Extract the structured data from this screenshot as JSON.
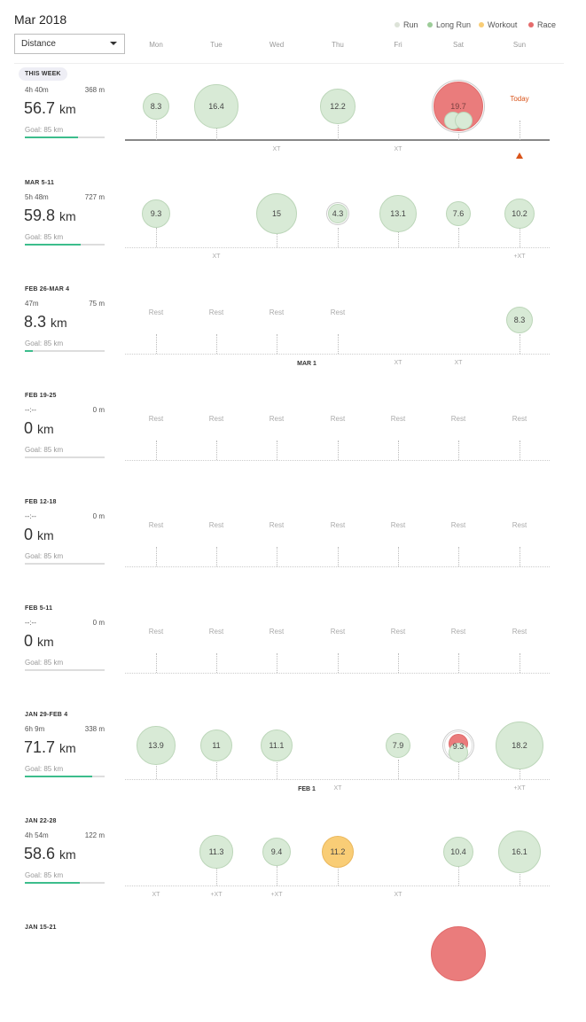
{
  "header": {
    "month_title": "Mar 2018",
    "metric_select": "Distance",
    "legend": [
      {
        "label": "Run",
        "color": "#dde3d8"
      },
      {
        "label": "Long Run",
        "color": "#9ccc98"
      },
      {
        "label": "Workout",
        "color": "#f9cd76"
      },
      {
        "label": "Race",
        "color": "#e56b6b"
      }
    ],
    "days": [
      "Mon",
      "Tue",
      "Wed",
      "Thu",
      "Fri",
      "Sat",
      "Sun"
    ]
  },
  "weeks": [
    {
      "label": "THIS WEEK",
      "time": "4h 40m",
      "elevation": "368 m",
      "total": "56.7",
      "unit": "km",
      "goal": "Goal: 85 km",
      "goal_progress": 0.667,
      "current": true,
      "days": [
        {
          "type": "run",
          "value": "8.3"
        },
        {
          "type": "long",
          "value": "16.4"
        },
        null,
        {
          "type": "run",
          "value": "12.2"
        },
        null,
        {
          "type": "race",
          "value": "19.7",
          "ring": true,
          "extras": [
            "run",
            "run"
          ]
        },
        {
          "type": "today",
          "label": "Today"
        }
      ],
      "xt": [
        null,
        null,
        "XT",
        null,
        "XT",
        null,
        null
      ]
    },
    {
      "label": "MAR 5-11",
      "time": "5h 48m",
      "elevation": "727 m",
      "total": "59.8",
      "unit": "km",
      "goal": "Goal: 85 km",
      "goal_progress": 0.704,
      "days": [
        {
          "type": "run",
          "value": "9.3"
        },
        null,
        {
          "type": "long",
          "value": "15"
        },
        {
          "type": "run",
          "value": "4.3",
          "ring": true
        },
        {
          "type": "run",
          "value": "13.1"
        },
        {
          "type": "run",
          "value": "7.6"
        },
        {
          "type": "run",
          "value": "10.2"
        }
      ],
      "xt": [
        null,
        "XT",
        null,
        null,
        null,
        null,
        "+XT"
      ]
    },
    {
      "label": "FEB 26-MAR 4",
      "time": "47m",
      "elevation": "75 m",
      "total": "8.3",
      "unit": "km",
      "goal": "Goal: 85 km",
      "goal_progress": 0.098,
      "days": [
        {
          "type": "rest",
          "label": "Rest"
        },
        {
          "type": "rest",
          "label": "Rest"
        },
        {
          "type": "rest",
          "label": "Rest"
        },
        {
          "type": "rest",
          "label": "Rest"
        },
        null,
        null,
        {
          "type": "run",
          "value": "8.3"
        }
      ],
      "xt": [
        null,
        null,
        null,
        null,
        "XT",
        "XT",
        null
      ],
      "month_mark": "MAR 1"
    },
    {
      "label": "FEB 19-25",
      "time": "--:--",
      "elevation": "0 m",
      "total": "0",
      "unit": "km",
      "goal": "Goal: 85 km",
      "goal_progress": 0,
      "days": [
        {
          "type": "rest",
          "label": "Rest"
        },
        {
          "type": "rest",
          "label": "Rest"
        },
        {
          "type": "rest",
          "label": "Rest"
        },
        {
          "type": "rest",
          "label": "Rest"
        },
        {
          "type": "rest",
          "label": "Rest"
        },
        {
          "type": "rest",
          "label": "Rest"
        },
        {
          "type": "rest",
          "label": "Rest"
        }
      ],
      "xt": []
    },
    {
      "label": "FEB 12-18",
      "time": "--:--",
      "elevation": "0 m",
      "total": "0",
      "unit": "km",
      "goal": "Goal: 85 km",
      "goal_progress": 0,
      "days": [
        {
          "type": "rest",
          "label": "Rest"
        },
        {
          "type": "rest",
          "label": "Rest"
        },
        {
          "type": "rest",
          "label": "Rest"
        },
        {
          "type": "rest",
          "label": "Rest"
        },
        {
          "type": "rest",
          "label": "Rest"
        },
        {
          "type": "rest",
          "label": "Rest"
        },
        {
          "type": "rest",
          "label": "Rest"
        }
      ],
      "xt": []
    },
    {
      "label": "FEB 5-11",
      "time": "--:--",
      "elevation": "0 m",
      "total": "0",
      "unit": "km",
      "goal": "Goal: 85 km",
      "goal_progress": 0,
      "days": [
        {
          "type": "rest",
          "label": "Rest"
        },
        {
          "type": "rest",
          "label": "Rest"
        },
        {
          "type": "rest",
          "label": "Rest"
        },
        {
          "type": "rest",
          "label": "Rest"
        },
        {
          "type": "rest",
          "label": "Rest"
        },
        {
          "type": "rest",
          "label": "Rest"
        },
        {
          "type": "rest",
          "label": "Rest"
        }
      ],
      "xt": []
    },
    {
      "label": "JAN 29-FEB 4",
      "time": "6h 9m",
      "elevation": "338 m",
      "total": "71.7",
      "unit": "km",
      "goal": "Goal: 85 km",
      "goal_progress": 0.844,
      "days": [
        {
          "type": "long",
          "value": "13.9"
        },
        {
          "type": "run",
          "value": "11"
        },
        {
          "type": "run",
          "value": "11.1"
        },
        null,
        {
          "type": "run",
          "value": "7.9"
        },
        {
          "type": "mixed",
          "value": "9.3",
          "ring": true
        },
        {
          "type": "long",
          "value": "18.2"
        }
      ],
      "xt": [
        null,
        null,
        null,
        "XT",
        null,
        null,
        "+XT"
      ],
      "month_mark": "FEB 1"
    },
    {
      "label": "JAN 22-28",
      "time": "4h 54m",
      "elevation": "122 m",
      "total": "58.6",
      "unit": "km",
      "goal": "Goal: 85 km",
      "goal_progress": 0.689,
      "days": [
        null,
        {
          "type": "run",
          "value": "11.3"
        },
        {
          "type": "run",
          "value": "9.4"
        },
        {
          "type": "workout",
          "value": "11.2"
        },
        null,
        {
          "type": "run",
          "value": "10.4"
        },
        {
          "type": "long",
          "value": "16.1"
        }
      ],
      "xt": [
        "XT",
        "+XT",
        "+XT",
        null,
        "XT",
        null,
        null
      ]
    },
    {
      "label": "JAN 15-21",
      "days": [
        null,
        null,
        null,
        null,
        null,
        {
          "type": "race",
          "value": ""
        },
        null
      ],
      "xt": [],
      "partial": true
    }
  ]
}
